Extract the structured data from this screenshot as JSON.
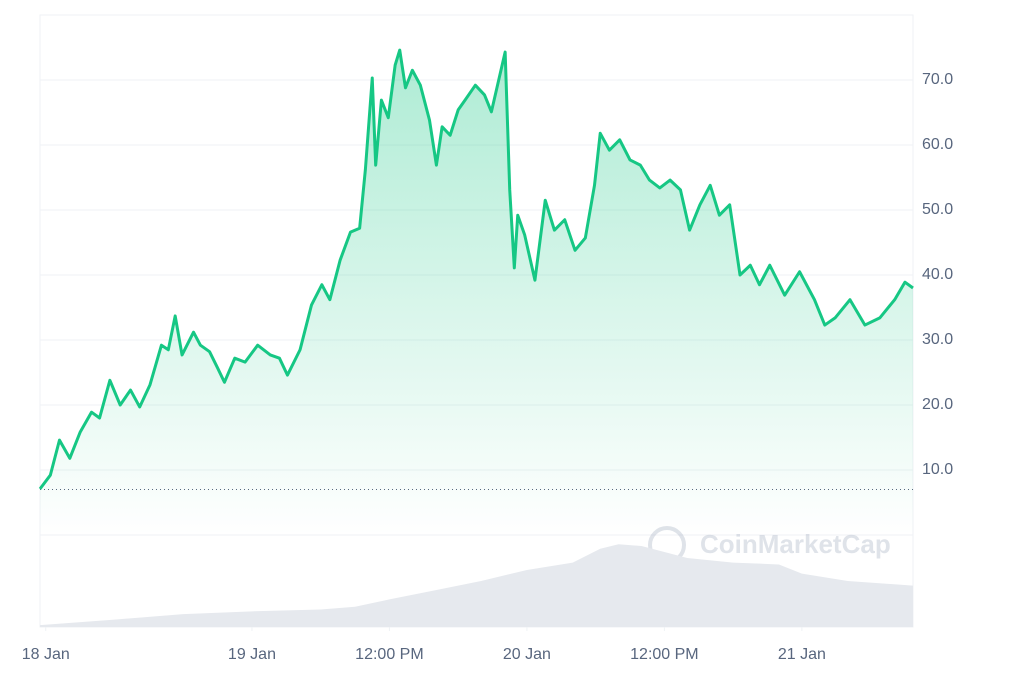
{
  "chart_data": {
    "type": "area-line",
    "color": "#16c784",
    "watermark": "CoinMarketCap",
    "x": [
      5.5,
      6.4,
      7.2,
      8.1,
      9.0,
      10.0,
      10.7,
      11.6,
      12.5,
      13.4,
      14.2,
      15.1,
      16.1,
      16.7,
      17.3,
      17.9,
      18.9,
      19.5,
      20.3,
      21.0,
      21.6,
      22.5,
      23.4,
      24.5,
      25.6,
      26.4,
      27.1,
      28.2,
      29.2,
      30.1,
      30.8,
      31.7,
      32.6,
      33.4,
      33.9,
      34.5,
      34.8,
      35.3,
      35.9,
      36.5,
      36.9,
      37.4,
      38.0,
      38.7,
      39.5,
      40.1,
      40.6,
      41.3,
      42.0,
      42.6,
      43.5,
      44.3,
      44.9,
      46.1,
      46.5,
      46.9,
      47.2,
      47.8,
      48.7,
      49.6,
      50.4,
      51.3,
      52.2,
      53.1,
      53.9,
      54.4,
      55.2,
      56.1,
      57.0,
      57.9,
      58.7,
      59.6,
      60.5,
      61.4,
      62.2,
      63.1,
      64.0,
      64.8,
      65.7,
      66.6,
      67.5,
      68.3,
      69.2,
      70.5,
      71.8,
      73.1,
      74.0,
      74.9,
      76.2,
      77.5,
      78.8,
      80.1,
      81.0,
      81.7
    ],
    "series": [
      {
        "color": "#16c784",
        "values": [
          7.1,
          9.2,
          14.6,
          11.8,
          15.8,
          18.9,
          18.0,
          23.8,
          20.0,
          22.3,
          19.7,
          23.1,
          29.2,
          28.5,
          33.7,
          27.7,
          31.2,
          29.2,
          28.2,
          25.7,
          23.5,
          27.2,
          26.6,
          29.2,
          27.7,
          27.2,
          24.6,
          28.5,
          35.4,
          38.5,
          36.2,
          42.3,
          46.6,
          47.2,
          56.2,
          70.3,
          56.9,
          66.9,
          64.2,
          72.3,
          74.6,
          68.8,
          71.5,
          69.2,
          63.8,
          56.9,
          62.8,
          61.5,
          65.4,
          66.9,
          69.2,
          67.7,
          65.1,
          74.3,
          53.1,
          41.1,
          49.2,
          46.2,
          39.2,
          51.5,
          46.9,
          48.5,
          43.8,
          45.7,
          53.8,
          61.8,
          59.2,
          60.8,
          57.7,
          56.9,
          54.6,
          53.4,
          54.6,
          53.1,
          46.9,
          50.8,
          53.8,
          49.2,
          50.8,
          40.0,
          41.5,
          38.5,
          41.5,
          36.9,
          40.5,
          36.2,
          32.3,
          33.4,
          36.2,
          32.3,
          33.4,
          36.2,
          38.9,
          38.0
        ]
      }
    ],
    "baseline": 7,
    "volume": {
      "color": "#e6e9ee",
      "x": [
        5.5,
        12,
        18,
        24,
        30,
        33,
        36,
        40,
        44,
        48,
        52,
        54.4,
        56,
        58,
        62,
        66,
        70,
        72,
        76,
        81.7
      ],
      "values": [
        2,
        8,
        14,
        17,
        19,
        22,
        30,
        40,
        50,
        62,
        70,
        85,
        90,
        88,
        75,
        70,
        68,
        58,
        50,
        45
      ],
      "ylim": [
        0,
        100
      ]
    },
    "xlim": [
      5.5,
      81.7
    ],
    "ylim": [
      0,
      80
    ],
    "xticks": [
      {
        "value": 6,
        "label": "18 Jan"
      },
      {
        "value": 24,
        "label": "19 Jan"
      },
      {
        "value": 36,
        "label": "12:00 PM"
      },
      {
        "value": 48,
        "label": "20 Jan"
      },
      {
        "value": 60,
        "label": "12:00 PM"
      },
      {
        "value": 72,
        "label": "21 Jan"
      }
    ],
    "yticks": [
      {
        "value": 10,
        "label": "10.0"
      },
      {
        "value": 20,
        "label": "20.0"
      },
      {
        "value": 30,
        "label": "30.0"
      },
      {
        "value": 40,
        "label": "40.0"
      },
      {
        "value": 50,
        "label": "50.0"
      },
      {
        "value": 60,
        "label": "60.0"
      },
      {
        "value": 70,
        "label": "70.0"
      }
    ],
    "grid": true
  }
}
